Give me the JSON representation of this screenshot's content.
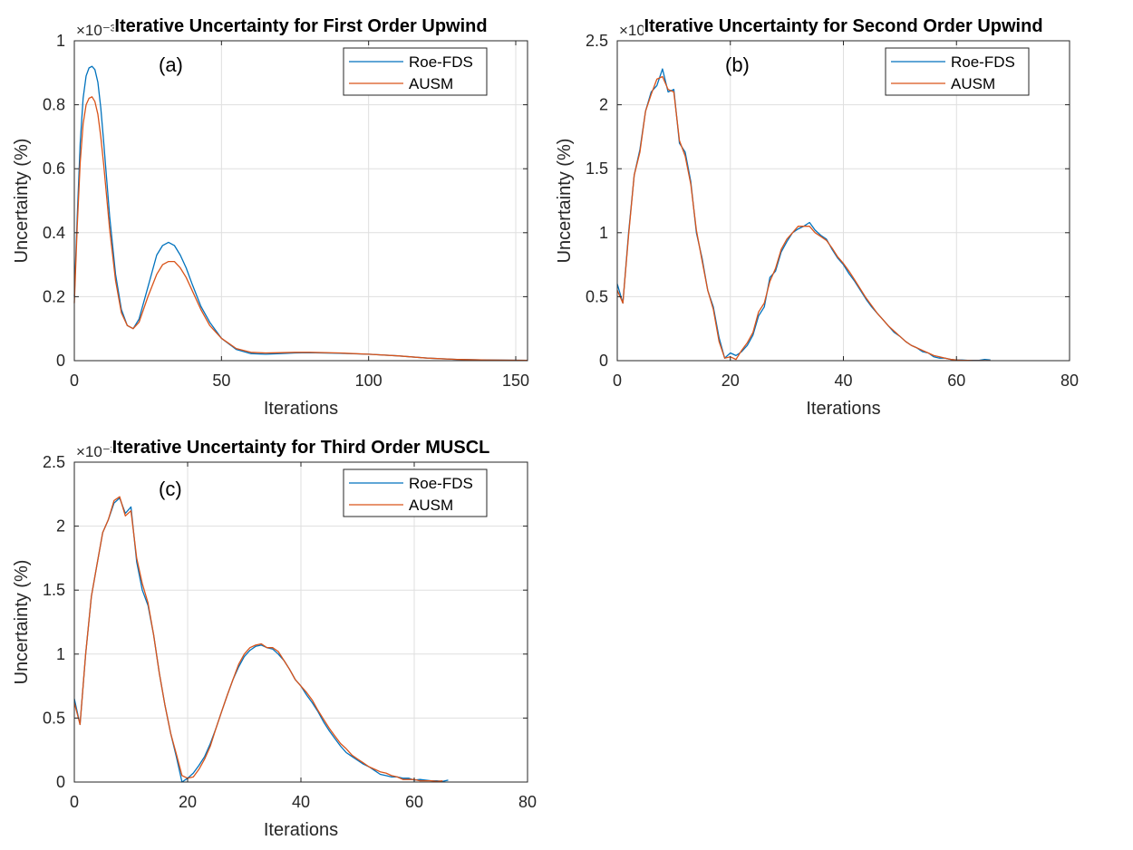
{
  "colors": {
    "roe": "#0072bd",
    "ausm": "#d95319"
  },
  "chart_data": [
    {
      "type": "line",
      "title": "Iterative Uncertainty for First Order Upwind",
      "panel_tag": "(a)",
      "xlabel": "Iterations",
      "ylabel": "Uncertainty (%)",
      "xlim": [
        0,
        154
      ],
      "ylim": [
        0,
        1
      ],
      "xticks": [
        0,
        50,
        100,
        150
      ],
      "yticks": [
        0,
        0.2,
        0.4,
        0.6,
        0.8,
        1
      ],
      "ytick_labels": [
        "0",
        "0.2",
        "0.4",
        "0.6",
        "0.8",
        "1"
      ],
      "exponent_label": "×10⁻³",
      "grid": true,
      "legend_position": "top-right",
      "series": [
        {
          "name": "Roe-FDS",
          "color_key": "roe",
          "x": [
            0,
            1,
            2,
            3,
            4,
            5,
            6,
            7,
            8,
            9,
            10,
            12,
            14,
            16,
            18,
            20,
            22,
            25,
            28,
            30,
            32,
            34,
            36,
            38,
            40,
            43,
            46,
            50,
            55,
            60,
            65,
            70,
            75,
            80,
            90,
            100,
            110,
            120,
            130,
            140,
            154
          ],
          "y": [
            0.2,
            0.45,
            0.68,
            0.82,
            0.89,
            0.915,
            0.92,
            0.91,
            0.87,
            0.79,
            0.68,
            0.45,
            0.27,
            0.16,
            0.11,
            0.1,
            0.13,
            0.23,
            0.33,
            0.36,
            0.37,
            0.36,
            0.33,
            0.29,
            0.24,
            0.17,
            0.12,
            0.07,
            0.035,
            0.022,
            0.02,
            0.022,
            0.024,
            0.025,
            0.023,
            0.02,
            0.015,
            0.008,
            0.004,
            0.002,
            0.001
          ]
        },
        {
          "name": "AUSM",
          "color_key": "ausm",
          "x": [
            0,
            1,
            2,
            3,
            4,
            5,
            6,
            7,
            8,
            9,
            10,
            12,
            14,
            16,
            18,
            20,
            22,
            25,
            28,
            30,
            32,
            34,
            36,
            38,
            40,
            43,
            46,
            50,
            55,
            60,
            65,
            70,
            75,
            80,
            90,
            100,
            110,
            120,
            130,
            140,
            154
          ],
          "y": [
            0.18,
            0.42,
            0.62,
            0.74,
            0.8,
            0.82,
            0.825,
            0.81,
            0.77,
            0.7,
            0.61,
            0.41,
            0.25,
            0.15,
            0.11,
            0.1,
            0.12,
            0.2,
            0.27,
            0.3,
            0.31,
            0.31,
            0.29,
            0.26,
            0.22,
            0.16,
            0.11,
            0.07,
            0.038,
            0.026,
            0.024,
            0.025,
            0.026,
            0.026,
            0.024,
            0.02,
            0.015,
            0.008,
            0.004,
            0.002,
            0.001
          ]
        }
      ]
    },
    {
      "type": "line",
      "title": "Iterative Uncertainty for Second Order Upwind",
      "panel_tag": "(b)",
      "xlabel": "Iterations",
      "ylabel": "Uncertainty (%)",
      "xlim": [
        0,
        80
      ],
      "ylim": [
        0,
        2.5
      ],
      "xticks": [
        0,
        20,
        40,
        60,
        80
      ],
      "yticks": [
        0,
        0.5,
        1,
        1.5,
        2,
        2.5
      ],
      "ytick_labels": [
        "0",
        "0.5",
        "1",
        "1.5",
        "2",
        "2.5"
      ],
      "exponent_label": "×10⁻³",
      "grid": true,
      "legend_position": "top-right",
      "series": [
        {
          "name": "Roe-FDS",
          "color_key": "roe",
          "x": [
            0,
            1,
            2,
            3,
            4,
            5,
            6,
            7,
            8,
            9,
            10,
            11,
            12,
            13,
            14,
            15,
            16,
            17,
            18,
            19,
            20,
            21,
            22,
            23,
            24,
            25,
            26,
            27,
            28,
            29,
            30,
            31,
            32,
            33,
            34,
            35,
            36,
            37,
            38,
            39,
            40,
            41,
            42,
            43,
            44,
            45,
            46,
            47,
            48,
            49,
            50,
            51,
            52,
            53,
            54,
            55,
            56,
            57,
            58,
            59,
            60,
            61,
            62,
            63,
            64,
            65,
            66
          ],
          "y": [
            0.6,
            0.45,
            1.0,
            1.45,
            1.65,
            1.95,
            2.1,
            2.15,
            2.28,
            2.1,
            2.12,
            1.7,
            1.63,
            1.4,
            1.0,
            0.8,
            0.55,
            0.42,
            0.18,
            0.02,
            0.06,
            0.04,
            0.07,
            0.12,
            0.2,
            0.35,
            0.42,
            0.65,
            0.7,
            0.85,
            0.93,
            1.0,
            1.03,
            1.05,
            1.08,
            1.02,
            0.98,
            0.95,
            0.87,
            0.8,
            0.75,
            0.68,
            0.62,
            0.55,
            0.48,
            0.42,
            0.37,
            0.32,
            0.27,
            0.22,
            0.19,
            0.15,
            0.12,
            0.1,
            0.07,
            0.06,
            0.03,
            0.02,
            0.02,
            0.01,
            0.005,
            0.005,
            0.002,
            0.002,
            0.002,
            0.01,
            0.005
          ]
        },
        {
          "name": "AUSM",
          "color_key": "ausm",
          "x": [
            0,
            1,
            2,
            3,
            4,
            5,
            6,
            7,
            8,
            9,
            10,
            11,
            12,
            13,
            14,
            15,
            16,
            17,
            18,
            19,
            20,
            21,
            22,
            23,
            24,
            25,
            26,
            27,
            28,
            29,
            30,
            31,
            32,
            33,
            34,
            35,
            36,
            37,
            38,
            39,
            40,
            41,
            42,
            43,
            44,
            45,
            46,
            47,
            48,
            49,
            50,
            51,
            52,
            53,
            54,
            55,
            56,
            57,
            58,
            59,
            60,
            61,
            62,
            63,
            64,
            65,
            66
          ],
          "y": [
            0.55,
            0.45,
            0.98,
            1.45,
            1.63,
            1.95,
            2.08,
            2.2,
            2.22,
            2.12,
            2.1,
            1.72,
            1.6,
            1.38,
            1.02,
            0.78,
            0.55,
            0.4,
            0.15,
            0.02,
            0.03,
            0.01,
            0.08,
            0.14,
            0.22,
            0.38,
            0.45,
            0.62,
            0.72,
            0.87,
            0.95,
            1.0,
            1.05,
            1.05,
            1.05,
            1.0,
            0.97,
            0.94,
            0.88,
            0.81,
            0.76,
            0.7,
            0.63,
            0.56,
            0.49,
            0.43,
            0.37,
            0.32,
            0.27,
            0.23,
            0.19,
            0.15,
            0.12,
            0.1,
            0.08,
            0.06,
            0.04,
            0.03,
            0.02,
            0.01,
            0.005,
            0.002,
            0.002,
            0.001,
            0.001,
            0.001,
            0.001
          ]
        }
      ]
    },
    {
      "type": "line",
      "title": "Iterative Uncertainty for Third Order MUSCL",
      "panel_tag": "(c)",
      "xlabel": "Iterations",
      "ylabel": "Uncertainty (%)",
      "xlim": [
        0,
        80
      ],
      "ylim": [
        0,
        2.5
      ],
      "xticks": [
        0,
        20,
        40,
        60,
        80
      ],
      "yticks": [
        0,
        0.5,
        1,
        1.5,
        2,
        2.5
      ],
      "ytick_labels": [
        "0",
        "0.5",
        "1",
        "1.5",
        "2",
        "2.5"
      ],
      "exponent_label": "×10⁻³",
      "grid": true,
      "legend_position": "top-right",
      "series": [
        {
          "name": "Roe-FDS",
          "color_key": "roe",
          "x": [
            0,
            1,
            2,
            3,
            4,
            5,
            6,
            7,
            8,
            9,
            10,
            11,
            12,
            13,
            14,
            15,
            16,
            17,
            18,
            19,
            20,
            21,
            22,
            23,
            24,
            25,
            26,
            27,
            28,
            29,
            30,
            31,
            32,
            33,
            34,
            35,
            36,
            37,
            38,
            39,
            40,
            41,
            42,
            43,
            44,
            45,
            46,
            47,
            48,
            49,
            50,
            51,
            52,
            53,
            54,
            55,
            56,
            57,
            58,
            59,
            60,
            61,
            62,
            63,
            64,
            65,
            66
          ],
          "y": [
            0.65,
            0.45,
            1.0,
            1.45,
            1.7,
            1.95,
            2.05,
            2.18,
            2.22,
            2.1,
            2.15,
            1.72,
            1.5,
            1.38,
            1.15,
            0.85,
            0.6,
            0.38,
            0.2,
            0.0,
            0.03,
            0.07,
            0.13,
            0.2,
            0.3,
            0.42,
            0.55,
            0.68,
            0.8,
            0.9,
            0.98,
            1.03,
            1.06,
            1.07,
            1.05,
            1.04,
            1.0,
            0.95,
            0.88,
            0.8,
            0.75,
            0.68,
            0.62,
            0.55,
            0.47,
            0.4,
            0.34,
            0.28,
            0.23,
            0.2,
            0.17,
            0.14,
            0.12,
            0.09,
            0.06,
            0.05,
            0.04,
            0.04,
            0.03,
            0.03,
            0.015,
            0.02,
            0.015,
            0.01,
            0.01,
            0.005,
            0.015
          ]
        },
        {
          "name": "AUSM",
          "color_key": "ausm",
          "x": [
            0,
            1,
            2,
            3,
            4,
            5,
            6,
            7,
            8,
            9,
            10,
            11,
            12,
            13,
            14,
            15,
            16,
            17,
            18,
            19,
            20,
            21,
            22,
            23,
            24,
            25,
            26,
            27,
            28,
            29,
            30,
            31,
            32,
            33,
            34,
            35,
            36,
            37,
            38,
            39,
            40,
            41,
            42,
            43,
            44,
            45,
            46,
            47,
            48,
            49,
            50,
            51,
            52,
            53,
            54,
            55,
            56,
            57,
            58,
            59,
            60,
            61,
            62,
            63,
            64,
            65
          ],
          "y": [
            0.62,
            0.45,
            1.0,
            1.45,
            1.7,
            1.95,
            2.05,
            2.2,
            2.23,
            2.08,
            2.12,
            1.75,
            1.55,
            1.4,
            1.15,
            0.85,
            0.6,
            0.38,
            0.22,
            0.05,
            0.03,
            0.04,
            0.1,
            0.18,
            0.28,
            0.42,
            0.55,
            0.68,
            0.8,
            0.92,
            1.0,
            1.05,
            1.07,
            1.08,
            1.05,
            1.05,
            1.02,
            0.95,
            0.88,
            0.8,
            0.75,
            0.7,
            0.64,
            0.56,
            0.49,
            0.42,
            0.36,
            0.3,
            0.26,
            0.21,
            0.18,
            0.15,
            0.12,
            0.1,
            0.08,
            0.07,
            0.05,
            0.04,
            0.02,
            0.02,
            0.02,
            0.01,
            0.01,
            0.01,
            0.005,
            0.01
          ]
        }
      ]
    }
  ]
}
